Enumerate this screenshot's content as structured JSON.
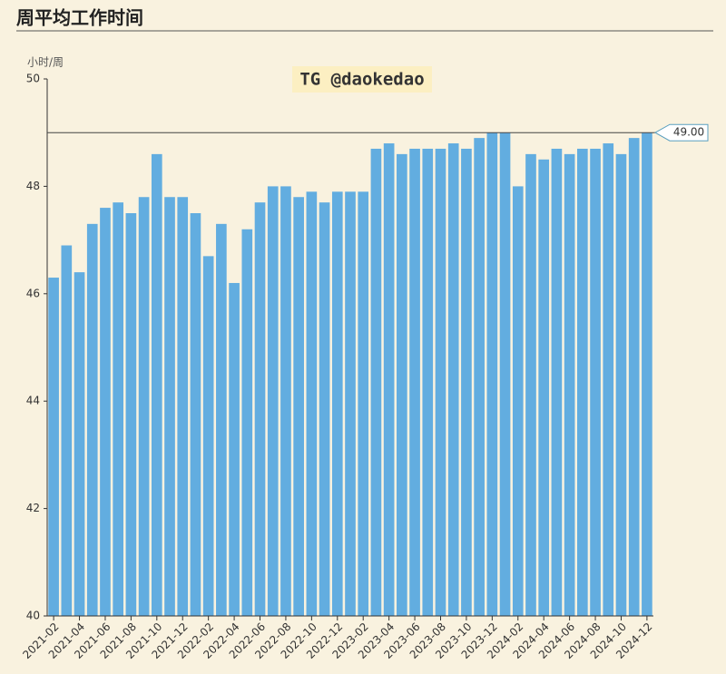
{
  "chart_data": {
    "type": "bar",
    "title": "周平均工作时间",
    "y_axis_label": "小时/周",
    "watermark": "TG @daokedao",
    "categories": [
      "2021-02",
      null,
      "2021-04",
      null,
      "2021-06",
      null,
      "2021-08",
      null,
      "2021-10",
      null,
      "2021-12",
      null,
      "2022-02",
      null,
      "2022-04",
      null,
      "2022-06",
      null,
      "2022-08",
      null,
      "2022-10",
      null,
      "2022-12",
      null,
      "2023-02",
      null,
      "2023-04",
      null,
      "2023-06",
      null,
      "2023-08",
      null,
      "2023-10",
      null,
      "2023-12",
      null,
      "2024-02",
      null,
      "2024-04",
      null,
      "2024-06",
      null,
      "2024-08",
      null,
      "2024-10",
      null,
      "2024-12"
    ],
    "values": [
      46.3,
      46.9,
      46.4,
      47.3,
      47.6,
      47.7,
      47.5,
      47.8,
      48.6,
      47.8,
      47.8,
      47.5,
      46.7,
      47.3,
      46.2,
      47.2,
      47.7,
      48.0,
      48.0,
      47.8,
      47.9,
      47.7,
      47.9,
      47.9,
      47.9,
      48.7,
      48.8,
      48.6,
      48.7,
      48.7,
      48.7,
      48.8,
      48.7,
      48.9,
      49.0,
      49.0,
      48.0,
      48.6,
      48.5,
      48.7,
      48.6,
      48.7,
      48.7,
      48.8,
      48.6,
      48.9,
      49.0
    ],
    "color": "#62ade0",
    "ylim": [
      40,
      50
    ],
    "yticks": [
      40,
      42,
      44,
      46,
      48,
      50
    ],
    "grid": false,
    "markline": {
      "value": 49,
      "label": "49.00"
    }
  }
}
